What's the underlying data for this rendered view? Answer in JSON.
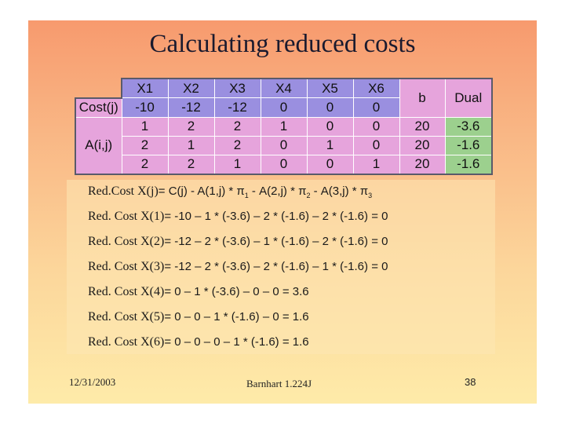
{
  "slide": {
    "title": "Calculating reduced costs",
    "footer_date": "12/31/2003",
    "footer_author": "Barnhart 1.224J",
    "page_number": "38"
  },
  "table": {
    "headers": [
      "X1",
      "X2",
      "X3",
      "X4",
      "X5",
      "X6",
      "b",
      "Dual"
    ],
    "cost_label": "Cost(j)",
    "cost": [
      "-10",
      "-12",
      "-12",
      "0",
      "0",
      "0"
    ],
    "a_label": "A(i,j)",
    "rows": [
      {
        "a": [
          "1",
          "2",
          "2",
          "1",
          "0",
          "0"
        ],
        "b": "20",
        "dual": "-3.6"
      },
      {
        "a": [
          "2",
          "1",
          "2",
          "0",
          "1",
          "0"
        ],
        "b": "20",
        "dual": "-1.6"
      },
      {
        "a": [
          "2",
          "2",
          "1",
          "0",
          "0",
          "1"
        ],
        "b": "20",
        "dual": "-1.6"
      }
    ]
  },
  "formula": {
    "label": "Red.Cost X(j)",
    "rhs_1": "= C(j) - A(1,j) * π",
    "sub_1": "1",
    "rhs_2": " - A(2,j) * π",
    "sub_2": "2",
    "rhs_3": " - A(3,j) * π",
    "sub_3": "3"
  },
  "equations": [
    {
      "label": "Red. Cost X(1)",
      "rhs": "= -10 – 1 * (-3.6) – 2 * (-1.6) – 2 * (-1.6) = 0"
    },
    {
      "label": "Red. Cost X(2)",
      "rhs": "= -12 – 2 * (-3.6) – 1 * (-1.6) – 2 * (-1.6) = 0"
    },
    {
      "label": "Red. Cost X(3)",
      "rhs": "= -12 – 2 * (-3.6) – 2 * (-1.6) – 1 * (-1.6) = 0"
    },
    {
      "label": "Red. Cost X(4)",
      "rhs": "= 0 – 1 * (-3.6) – 0 – 0 = 3.6"
    },
    {
      "label": "Red. Cost X(5)",
      "rhs": "= 0 – 0 – 1 * (-1.6) – 0 = 1.6"
    },
    {
      "label": "Red. Cost X(6)",
      "rhs": "= 0 – 0 – 0 – 1 * (-1.6) = 1.6"
    }
  ]
}
